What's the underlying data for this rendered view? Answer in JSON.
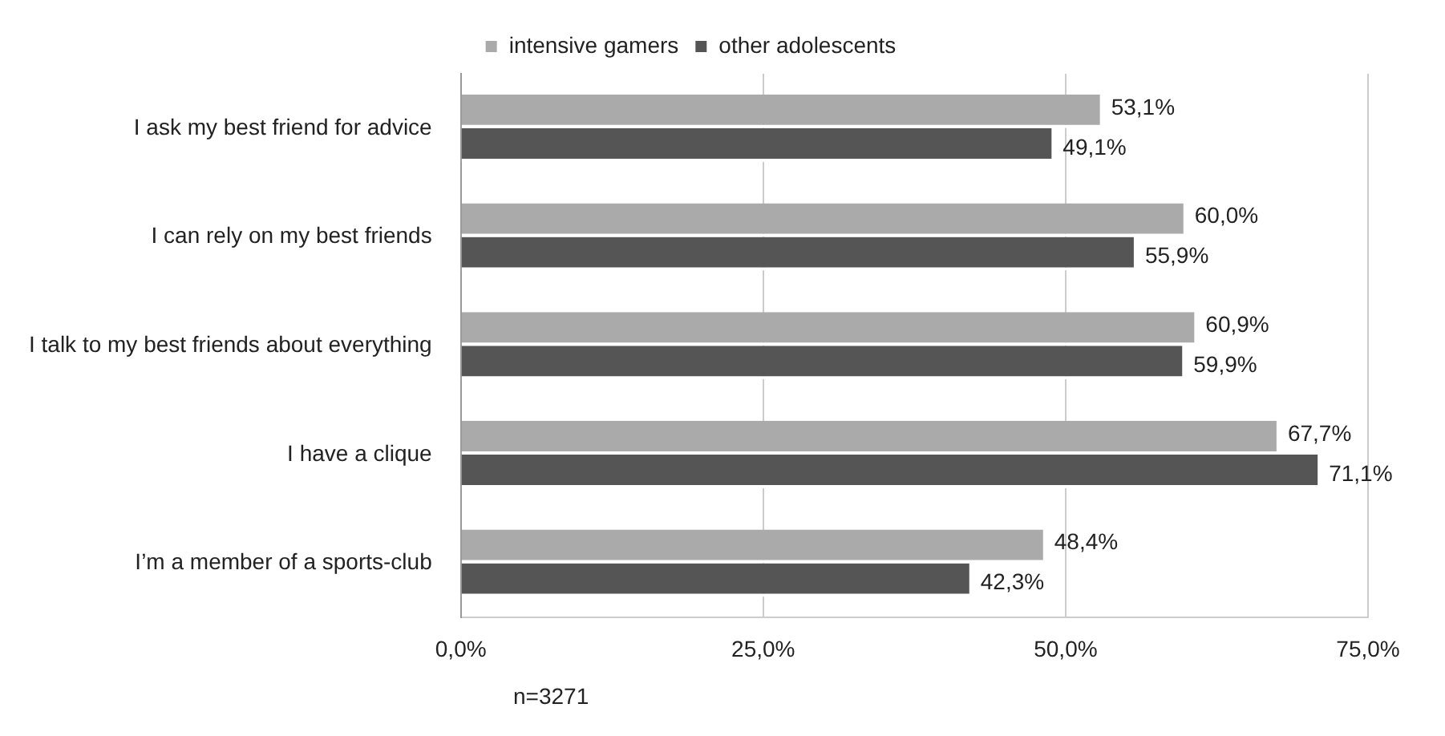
{
  "chart_data": {
    "type": "bar",
    "orientation": "horizontal",
    "categories": [
      "I ask my best friend for advice",
      "I can rely on my best friends",
      "I talk to my best friends about everything",
      "I have a clique",
      "I’m a member of a sports-club"
    ],
    "series": [
      {
        "name": "intensive gamers",
        "color": "#aaaaaa",
        "values": [
          53.1,
          60.0,
          60.9,
          67.7,
          48.4
        ],
        "value_labels": [
          "53,1%",
          "60,0%",
          "60,9%",
          "67,7%",
          "48,4%"
        ]
      },
      {
        "name": "other adolescents",
        "color": "#555555",
        "values": [
          49.1,
          55.9,
          59.9,
          71.1,
          42.3
        ],
        "value_labels": [
          "49,1%",
          "55,9%",
          "59,9%",
          "71,1%",
          "42,3%"
        ]
      }
    ],
    "xlim": [
      0,
      75
    ],
    "xticks": [
      {
        "value": 0,
        "label": "0,0%"
      },
      {
        "value": 25,
        "label": "25,0%"
      },
      {
        "value": 50,
        "label": "50,0%"
      },
      {
        "value": 75,
        "label": "75,0%"
      }
    ],
    "grid": "x",
    "legend": "top",
    "annotations": [
      "n=3271"
    ]
  }
}
